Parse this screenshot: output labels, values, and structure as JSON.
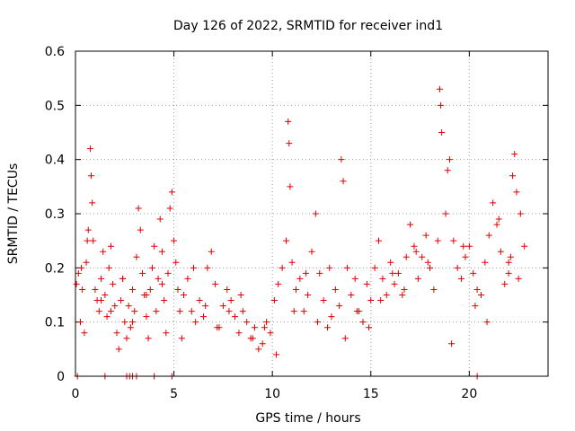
{
  "chart_data": {
    "type": "scatter",
    "title": "Day 126 of 2022, SRMTID for receiver ind1",
    "xlabel": "GPS time / hours",
    "ylabel": "SRMTID / TECUs",
    "xlim": [
      0,
      24
    ],
    "ylim": [
      0,
      0.6
    ],
    "xticks": [
      0,
      5,
      10,
      15,
      20
    ],
    "xtick_labels": [
      "0",
      "5",
      "10",
      "15",
      "20"
    ],
    "yticks": [
      0,
      0.1,
      0.2,
      0.3,
      0.4,
      0.5,
      0.6
    ],
    "ytick_labels": [
      "0",
      "0.1",
      "0.2",
      "0.3",
      "0.4",
      "0.5",
      "0.6"
    ],
    "grid": true,
    "marker": "+",
    "color": "#e00000",
    "series": [
      {
        "name": "SRMTID",
        "x": [
          0.05,
          0.15,
          0.25,
          0.35,
          0.45,
          0.55,
          0.65,
          0.75,
          0.8,
          0.85,
          0.9,
          1.0,
          1.1,
          1.2,
          1.3,
          1.4,
          1.5,
          1.6,
          1.7,
          1.8,
          1.9,
          2.0,
          2.1,
          2.2,
          2.3,
          2.4,
          2.5,
          2.6,
          2.7,
          2.8,
          2.9,
          3.0,
          3.1,
          3.2,
          3.3,
          3.4,
          3.5,
          3.6,
          3.7,
          3.8,
          3.9,
          4.0,
          4.1,
          4.2,
          4.3,
          4.4,
          4.5,
          4.6,
          4.7,
          4.8,
          4.9,
          5.0,
          5.1,
          5.2,
          5.3,
          5.5,
          5.7,
          5.9,
          6.1,
          6.3,
          6.5,
          6.7,
          6.9,
          7.1,
          7.3,
          7.5,
          7.7,
          7.9,
          8.1,
          8.3,
          8.5,
          8.7,
          8.9,
          9.1,
          9.3,
          9.5,
          9.7,
          9.9,
          10.1,
          10.3,
          10.5,
          10.7,
          10.8,
          10.85,
          10.9,
          11.0,
          11.2,
          11.4,
          11.6,
          11.8,
          12.0,
          12.2,
          12.4,
          12.6,
          12.8,
          13.0,
          13.2,
          13.4,
          13.5,
          13.6,
          13.8,
          14.0,
          14.2,
          14.4,
          14.6,
          14.8,
          15.0,
          15.2,
          15.4,
          15.6,
          15.8,
          16.0,
          16.2,
          16.4,
          16.6,
          16.8,
          17.0,
          17.2,
          17.4,
          17.6,
          17.8,
          18.0,
          18.2,
          18.4,
          18.5,
          18.55,
          18.6,
          18.8,
          18.9,
          19.0,
          19.2,
          19.4,
          19.6,
          19.8,
          20.0,
          20.2,
          20.4,
          20.6,
          20.8,
          21.0,
          21.2,
          21.4,
          21.6,
          21.8,
          22.0,
          22.1,
          22.2,
          22.3,
          22.4,
          22.6,
          22.8,
          0.3,
          0.6,
          1.3,
          1.8,
          2.4,
          2.9,
          3.6,
          4.4,
          5.4,
          6.0,
          6.6,
          7.2,
          7.8,
          8.4,
          9.0,
          9.6,
          10.2,
          11.1,
          11.7,
          12.3,
          12.9,
          13.7,
          14.3,
          14.9,
          15.5,
          16.1,
          16.7,
          17.3,
          17.9,
          19.1,
          19.7,
          20.3,
          20.9,
          21.5,
          22.0,
          22.5,
          0.1,
          1.5,
          2.6,
          2.75,
          2.9,
          3.1,
          4.0,
          4.9,
          20.4
        ],
        "y": [
          0.17,
          0.19,
          0.1,
          0.16,
          0.08,
          0.21,
          0.27,
          0.42,
          0.37,
          0.32,
          0.25,
          0.16,
          0.14,
          0.12,
          0.18,
          0.23,
          0.15,
          0.11,
          0.2,
          0.24,
          0.17,
          0.13,
          0.08,
          0.05,
          0.14,
          0.18,
          0.1,
          0.07,
          0.13,
          0.09,
          0.16,
          0.12,
          0.22,
          0.31,
          0.27,
          0.19,
          0.15,
          0.11,
          0.07,
          0.16,
          0.2,
          0.24,
          0.12,
          0.18,
          0.29,
          0.23,
          0.14,
          0.08,
          0.19,
          0.31,
          0.34,
          0.25,
          0.21,
          0.16,
          0.12,
          0.15,
          0.18,
          0.12,
          0.1,
          0.14,
          0.11,
          0.2,
          0.23,
          0.17,
          0.09,
          0.13,
          0.16,
          0.14,
          0.11,
          0.08,
          0.12,
          0.1,
          0.07,
          0.09,
          0.05,
          0.06,
          0.1,
          0.08,
          0.14,
          0.17,
          0.2,
          0.25,
          0.47,
          0.43,
          0.35,
          0.21,
          0.16,
          0.18,
          0.12,
          0.15,
          0.23,
          0.3,
          0.19,
          0.14,
          0.09,
          0.11,
          0.16,
          0.13,
          0.4,
          0.36,
          0.2,
          0.15,
          0.18,
          0.12,
          0.1,
          0.17,
          0.14,
          0.2,
          0.25,
          0.18,
          0.15,
          0.21,
          0.17,
          0.19,
          0.15,
          0.22,
          0.28,
          0.24,
          0.18,
          0.22,
          0.26,
          0.2,
          0.16,
          0.25,
          0.53,
          0.5,
          0.45,
          0.3,
          0.38,
          0.4,
          0.25,
          0.2,
          0.18,
          0.22,
          0.24,
          0.19,
          0.16,
          0.15,
          0.21,
          0.26,
          0.32,
          0.28,
          0.23,
          0.17,
          0.19,
          0.22,
          0.37,
          0.41,
          0.34,
          0.3,
          0.24,
          0.2,
          0.25,
          0.14,
          0.12,
          0.18,
          0.1,
          0.15,
          0.17,
          0.07,
          0.2,
          0.13,
          0.09,
          0.12,
          0.15,
          0.07,
          0.09,
          0.04,
          0.12,
          0.19,
          0.1,
          0.2,
          0.07,
          0.12,
          0.09,
          0.14,
          0.19,
          0.16,
          0.23,
          0.21,
          0.06,
          0.24,
          0.13,
          0.1,
          0.29,
          0.21,
          0.18,
          0,
          0,
          0,
          0,
          0,
          0,
          0,
          0,
          0
        ]
      }
    ]
  }
}
